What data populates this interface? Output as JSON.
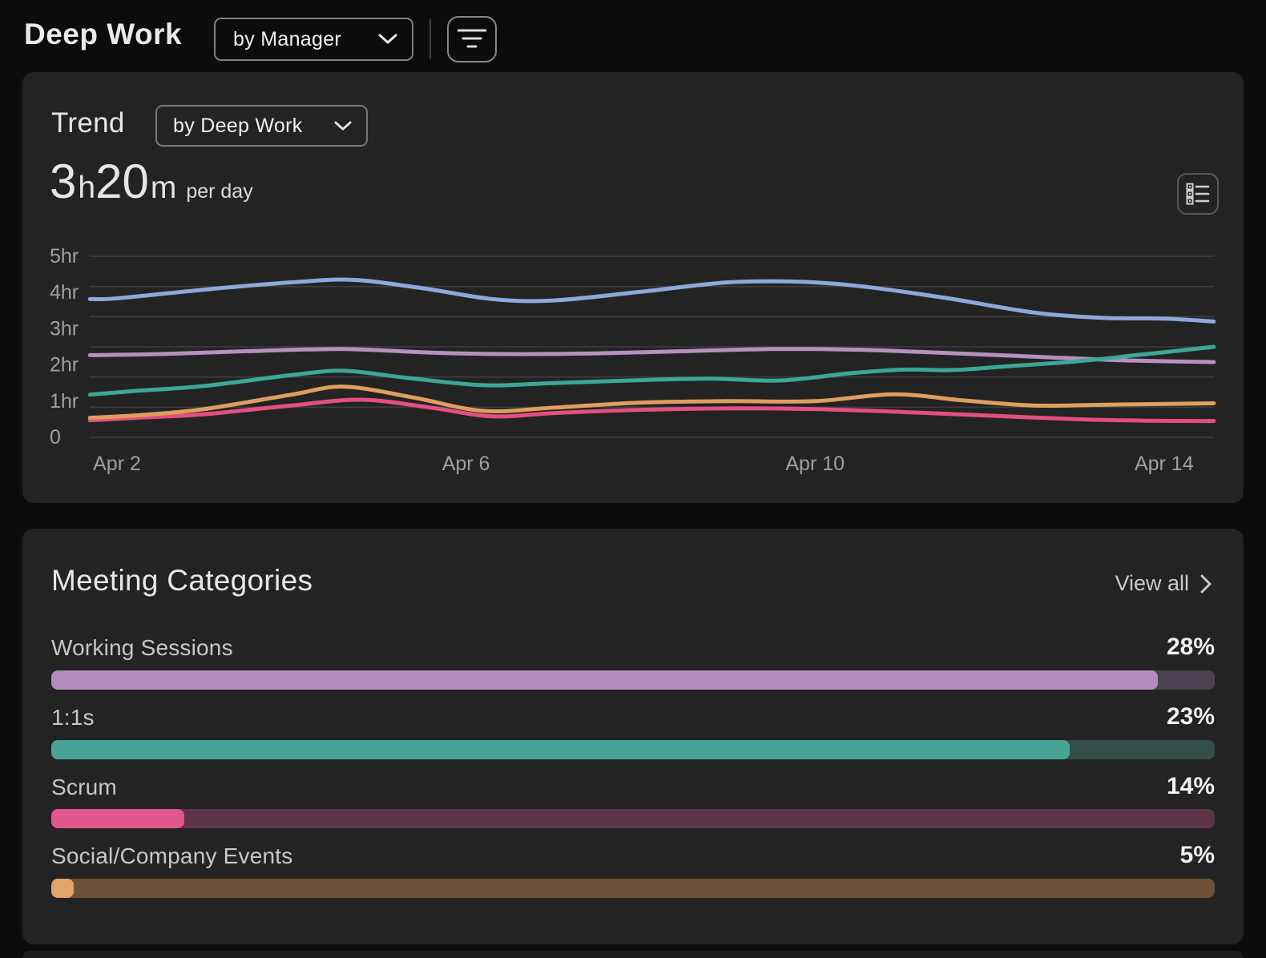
{
  "header": {
    "title": "Deep Work",
    "group_dropdown": {
      "value": "by Manager"
    }
  },
  "trend": {
    "title": "Trend",
    "breakdown_dropdown": {
      "value": "by Deep Work"
    },
    "stat": {
      "hours": "3",
      "hours_unit": "h",
      "minutes": "20",
      "minutes_unit": "m",
      "suffix": "per day"
    }
  },
  "chart_data": {
    "type": "line",
    "title": "Deep Work trend, hours per day (Apr 2 - Apr 14)",
    "grid": true,
    "grid_line_count": 7,
    "ylim_hours": [
      0,
      5
    ],
    "y_ticks": [
      {
        "label": "5hr",
        "hours": 5
      },
      {
        "label": "4hr",
        "hours": 4
      },
      {
        "label": "3hr",
        "hours": 3
      },
      {
        "label": "2hr",
        "hours": 2
      },
      {
        "label": "1hr",
        "hours": 1
      },
      {
        "label": "0",
        "hours": 0
      }
    ],
    "x_ticks": [
      {
        "label": "Apr 2",
        "day": 2
      },
      {
        "label": "Apr 6",
        "day": 6
      },
      {
        "label": "Apr 10",
        "day": 10
      },
      {
        "label": "Apr 14",
        "day": 14
      }
    ],
    "x_range_days": [
      1.69,
      14.57
    ],
    "series": [
      {
        "name": "blue-line",
        "color": "#8BA9DB",
        "points": [
          [
            1.69,
            3.82
          ],
          [
            2,
            3.84
          ],
          [
            3,
            4.08
          ],
          [
            4,
            4.28
          ],
          [
            4.7,
            4.35
          ],
          [
            5.5,
            4.12
          ],
          [
            6.3,
            3.82
          ],
          [
            7,
            3.78
          ],
          [
            8,
            4.02
          ],
          [
            9,
            4.28
          ],
          [
            9.8,
            4.3
          ],
          [
            10.5,
            4.18
          ],
          [
            11.5,
            3.85
          ],
          [
            12.5,
            3.45
          ],
          [
            13.3,
            3.3
          ],
          [
            14,
            3.28
          ],
          [
            14.57,
            3.2
          ]
        ]
      },
      {
        "name": "purple-line",
        "color": "#B78FC2",
        "points": [
          [
            1.69,
            2.27
          ],
          [
            2.5,
            2.3
          ],
          [
            3.5,
            2.38
          ],
          [
            4.6,
            2.44
          ],
          [
            5.6,
            2.34
          ],
          [
            6.5,
            2.3
          ],
          [
            7.5,
            2.32
          ],
          [
            8.5,
            2.38
          ],
          [
            9.5,
            2.44
          ],
          [
            10.5,
            2.42
          ],
          [
            11.5,
            2.33
          ],
          [
            12.5,
            2.23
          ],
          [
            13.5,
            2.13
          ],
          [
            14.57,
            2.08
          ]
        ]
      },
      {
        "name": "pink-line",
        "color": "#E34F80",
        "points": [
          [
            1.69,
            0.47
          ],
          [
            2.3,
            0.55
          ],
          [
            3,
            0.64
          ],
          [
            4,
            0.88
          ],
          [
            4.8,
            1.04
          ],
          [
            5.6,
            0.82
          ],
          [
            6.3,
            0.58
          ],
          [
            7,
            0.67
          ],
          [
            8,
            0.76
          ],
          [
            9,
            0.8
          ],
          [
            10,
            0.78
          ],
          [
            11,
            0.7
          ],
          [
            12,
            0.6
          ],
          [
            13,
            0.5
          ],
          [
            13.8,
            0.46
          ],
          [
            14.57,
            0.45
          ]
        ]
      },
      {
        "name": "orange-line",
        "color": "#DF9D60",
        "points": [
          [
            1.69,
            0.54
          ],
          [
            2.3,
            0.62
          ],
          [
            3,
            0.78
          ],
          [
            4,
            1.18
          ],
          [
            4.6,
            1.4
          ],
          [
            5.4,
            1.1
          ],
          [
            6.2,
            0.73
          ],
          [
            7,
            0.82
          ],
          [
            8,
            0.96
          ],
          [
            9,
            1.0
          ],
          [
            10,
            1.0
          ],
          [
            10.9,
            1.19
          ],
          [
            11.7,
            1.02
          ],
          [
            12.5,
            0.88
          ],
          [
            13.3,
            0.9
          ],
          [
            14.57,
            0.94
          ]
        ]
      },
      {
        "name": "teal-line",
        "color": "#3CA795",
        "points": [
          [
            1.69,
            1.18
          ],
          [
            2.2,
            1.28
          ],
          [
            3,
            1.42
          ],
          [
            4,
            1.72
          ],
          [
            4.6,
            1.84
          ],
          [
            5.3,
            1.65
          ],
          [
            6.2,
            1.44
          ],
          [
            7,
            1.5
          ],
          [
            8,
            1.58
          ],
          [
            8.8,
            1.62
          ],
          [
            9.6,
            1.57
          ],
          [
            10.4,
            1.77
          ],
          [
            11,
            1.87
          ],
          [
            11.6,
            1.86
          ],
          [
            12.3,
            1.98
          ],
          [
            13,
            2.1
          ],
          [
            13.8,
            2.3
          ],
          [
            14.57,
            2.5
          ]
        ]
      }
    ]
  },
  "categories": {
    "title": "Meeting Categories",
    "view_all_label": "View all",
    "items": [
      {
        "label": "Working Sessions",
        "percent": "28%",
        "fill_color": "#B28DBB",
        "track_color": "#4B4150",
        "fill_ratio": 0.951
      },
      {
        "label": "1:1s",
        "percent": "23%",
        "fill_color": "#4AA496",
        "track_color": "#344F49",
        "fill_ratio": 0.875
      },
      {
        "label": "Scrum",
        "percent": "14%",
        "fill_color": "#E1568D",
        "track_color": "#5D3447",
        "fill_ratio": 0.114
      },
      {
        "label": "Social/Company Events",
        "percent": "5%",
        "fill_color": "#E3A36D",
        "track_color": "#6B5138",
        "fill_ratio": 0.019
      }
    ]
  }
}
